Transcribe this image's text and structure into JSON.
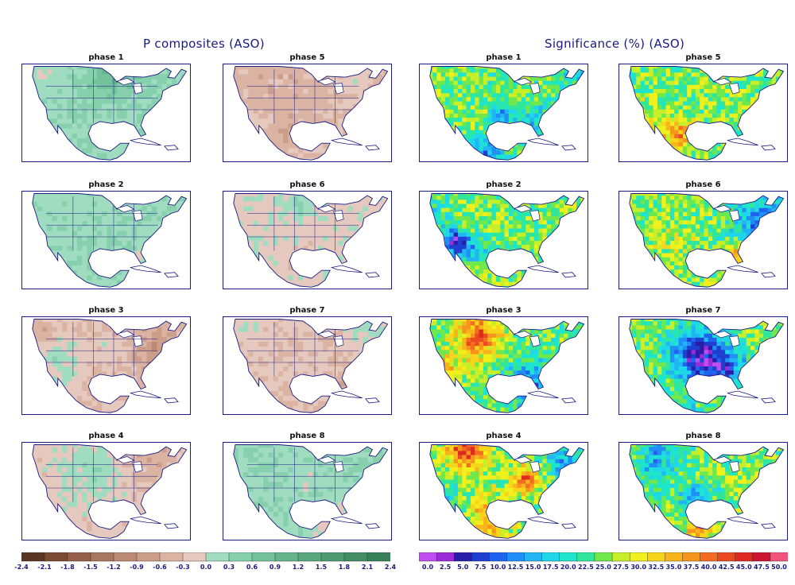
{
  "figure": {
    "left_title": "P composites (ASO)",
    "right_title": "Significance (%) (ASO)"
  },
  "chart_data": [
    {
      "type": "heatmap",
      "title": "P composites (ASO)",
      "panels": [
        "phase 1",
        "phase 5",
        "phase 2",
        "phase 6",
        "phase 3",
        "phase 7",
        "phase 4",
        "phase 8"
      ],
      "colorbar": {
        "ticks": [
          "-2.4",
          "-2.1",
          "-1.8",
          "-1.5",
          "-1.2",
          "-0.9",
          "-0.6",
          "-0.3",
          "0.0",
          "0.3",
          "0.6",
          "0.9",
          "1.2",
          "1.5",
          "1.8",
          "2.1",
          "2.4"
        ],
        "colors": [
          "#5b3624",
          "#7a4a33",
          "#94604a",
          "#a9765f",
          "#bc8a74",
          "#cc9d88",
          "#dbb3a3",
          "#e6c9be",
          "#9fdcc0",
          "#86d0ad",
          "#74c29b",
          "#66b48c",
          "#5aa77f",
          "#4e9a72",
          "#438d66",
          "#37805a"
        ]
      },
      "panel_tone": {
        "phase 1": 0.25,
        "phase 5": -0.35,
        "phase 2": 0.15,
        "phase 6": -0.1,
        "phase 3": -0.25,
        "phase 7": -0.2,
        "phase 4": -0.15,
        "phase 8": 0.2
      }
    },
    {
      "type": "heatmap",
      "title": "Significance (%) (ASO)",
      "panels": [
        "phase 1",
        "phase 5",
        "phase 2",
        "phase 6",
        "phase 3",
        "phase 7",
        "phase 4",
        "phase 8"
      ],
      "colorbar": {
        "ticks": [
          "0.0",
          "2.5",
          "5.0",
          "7.5",
          "10.0",
          "12.5",
          "15.0",
          "17.5",
          "20.0",
          "22.5",
          "25.0",
          "27.5",
          "30.0",
          "32.5",
          "35.0",
          "37.5",
          "40.0",
          "42.5",
          "45.0",
          "47.5",
          "50.0"
        ],
        "colors": [
          "#c04cf2",
          "#9b2bd8",
          "#2a1ea8",
          "#1e3fd0",
          "#1f63ee",
          "#1f8ff7",
          "#22b5f4",
          "#1fd6ea",
          "#1ee6cc",
          "#30e69a",
          "#6fe84e",
          "#c6ef2a",
          "#f1f01d",
          "#f6d51a",
          "#f8b51b",
          "#f7941d",
          "#f26d1f",
          "#e94a20",
          "#df2a22",
          "#cc1530",
          "#f0547a"
        ]
      }
    }
  ]
}
